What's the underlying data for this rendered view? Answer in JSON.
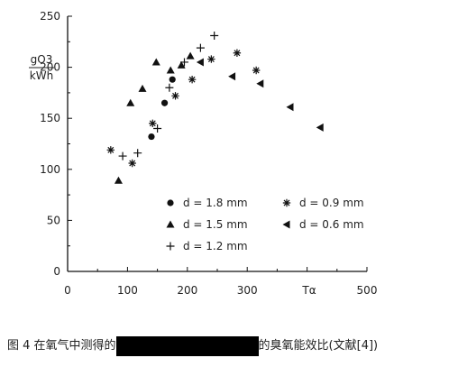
{
  "chart_data": {
    "type": "scatter",
    "title": "",
    "ylabel": "gO3 / kWh",
    "ylabel_top": "gO3",
    "ylabel_bottom": "kWh",
    "xlabel": "",
    "x_annotation": "Tα",
    "xlim": [
      0,
      500
    ],
    "ylim": [
      0,
      250
    ],
    "xticks": [
      0,
      100,
      200,
      300,
      400,
      500
    ],
    "xtick_labels": [
      "0",
      "100",
      "200",
      "300",
      "",
      "500"
    ],
    "yticks": [
      0,
      50,
      100,
      150,
      200,
      250
    ],
    "grid": false,
    "legend_position": "lower-left",
    "series": [
      {
        "name": "d = 1.8 mm",
        "marker": "circle",
        "points": [
          [
            140,
            132
          ],
          [
            162,
            165
          ],
          [
            175,
            188
          ]
        ]
      },
      {
        "name": "d = 1.5 mm",
        "marker": "triangle",
        "points": [
          [
            85,
            89
          ],
          [
            105,
            165
          ],
          [
            125,
            179
          ],
          [
            148,
            205
          ],
          [
            172,
            197
          ],
          [
            190,
            202
          ],
          [
            205,
            211
          ]
        ]
      },
      {
        "name": "d = 1.2 mm",
        "marker": "plus",
        "points": [
          [
            92,
            113
          ],
          [
            117,
            116
          ],
          [
            150,
            140
          ],
          [
            170,
            180
          ],
          [
            195,
            205
          ],
          [
            222,
            219
          ],
          [
            245,
            231
          ]
        ]
      },
      {
        "name": "d = 0.9 mm",
        "marker": "asterisk",
        "points": [
          [
            72,
            119
          ],
          [
            108,
            106
          ],
          [
            142,
            145
          ],
          [
            180,
            172
          ],
          [
            208,
            188
          ],
          [
            240,
            208
          ],
          [
            283,
            214
          ],
          [
            315,
            197
          ]
        ]
      },
      {
        "name": "d = 0.6 mm",
        "marker": "left-triangle",
        "points": [
          [
            222,
            205
          ],
          [
            275,
            191
          ],
          [
            322,
            184
          ],
          [
            372,
            161
          ],
          [
            422,
            141
          ]
        ]
      }
    ]
  },
  "caption": {
    "prefix": "图 4   在氧气中测得的",
    "suffix": "的臭氧能效比(文献[4])"
  }
}
